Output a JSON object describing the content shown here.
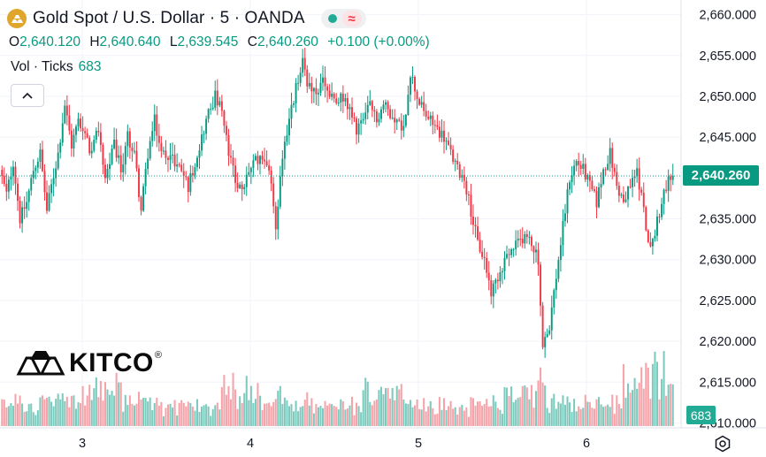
{
  "header": {
    "title": "Gold Spot / U.S. Dollar · 5 · OANDA",
    "symbol_icon": "gold-bars-icon",
    "status_icon": "market-open-dot",
    "indicator_icon": "approx-wave-icon"
  },
  "ohlc": {
    "o_label": "O",
    "o_value": "2,640.120",
    "h_label": "H",
    "h_value": "2,640.640",
    "l_label": "L",
    "l_value": "2,639.545",
    "c_label": "C",
    "c_value": "2,640.260",
    "change": "+0.100 (+0.00%)"
  },
  "volume": {
    "label": "Vol · Ticks",
    "value": "683"
  },
  "logo": {
    "text": "KITCO",
    "registered": "®"
  },
  "colors": {
    "up": "#089981",
    "down": "#f23645",
    "up_vol": "#7cc9bd",
    "down_vol": "#f5a2a9",
    "grid": "#f0f3fa",
    "text": "#131722",
    "accent_gold": "#e0a52b"
  },
  "chart_data": {
    "type": "candlestick",
    "interval": "5",
    "symbol": "XAUUSD",
    "source": "OANDA",
    "x_tick_labels": [
      "3",
      "4",
      "5",
      "6"
    ],
    "y_tick_labels": [
      "2,660.000",
      "2,655.000",
      "2,650.000",
      "2,645.000",
      "2,640.000",
      "2,635.000",
      "2,630.000",
      "2,625.000",
      "2,620.000",
      "2,615.000",
      "2,610.000"
    ],
    "ylim": [
      2609.4,
      2661.8
    ],
    "last_price": 2640.26,
    "last_price_label": "2,640.260",
    "last_volume_label": "683",
    "path": [
      [
        0,
        2641
      ],
      [
        3,
        2638
      ],
      [
        6,
        2642
      ],
      [
        9,
        2635
      ],
      [
        12,
        2637
      ],
      [
        15,
        2641
      ],
      [
        18,
        2643
      ],
      [
        21,
        2636
      ],
      [
        23,
        2639
      ],
      [
        26,
        2643
      ],
      [
        29,
        2649
      ],
      [
        32,
        2644
      ],
      [
        35,
        2647
      ],
      [
        38,
        2645
      ],
      [
        41,
        2643
      ],
      [
        44,
        2646
      ],
      [
        47,
        2640
      ],
      [
        51,
        2644
      ],
      [
        54,
        2641
      ],
      [
        57,
        2645
      ],
      [
        60,
        2643
      ],
      [
        63,
        2636
      ],
      [
        66,
        2643
      ],
      [
        69,
        2647
      ],
      [
        72,
        2643
      ],
      [
        75,
        2643
      ],
      [
        78,
        2642
      ],
      [
        81,
        2641
      ],
      [
        84,
        2639
      ],
      [
        87,
        2642
      ],
      [
        90,
        2645
      ],
      [
        93,
        2648
      ],
      [
        96,
        2650
      ],
      [
        99,
        2648
      ],
      [
        102,
        2643
      ],
      [
        105,
        2640
      ],
      [
        108,
        2638
      ],
      [
        111,
        2641
      ],
      [
        114,
        2642
      ],
      [
        117,
        2643
      ],
      [
        120,
        2641
      ],
      [
        123,
        2634
      ],
      [
        126,
        2643
      ],
      [
        129,
        2647
      ],
      [
        132,
        2651
      ],
      [
        135,
        2654
      ],
      [
        138,
        2651
      ],
      [
        141,
        2650
      ],
      [
        144,
        2652
      ],
      [
        147,
        2650
      ],
      [
        150,
        2649
      ],
      [
        153,
        2650
      ],
      [
        156,
        2648
      ],
      [
        159,
        2646
      ],
      [
        162,
        2647
      ],
      [
        165,
        2649
      ],
      [
        168,
        2647
      ],
      [
        171,
        2649
      ],
      [
        174,
        2648
      ],
      [
        177,
        2647
      ],
      [
        180,
        2646
      ],
      [
        183,
        2653
      ],
      [
        186,
        2650
      ],
      [
        189,
        2648
      ],
      [
        192,
        2647
      ],
      [
        195,
        2646
      ],
      [
        198,
        2645
      ],
      [
        201,
        2643
      ],
      [
        204,
        2641
      ],
      [
        207,
        2640
      ],
      [
        210,
        2636
      ],
      [
        213,
        2632
      ],
      [
        216,
        2630
      ],
      [
        219,
        2626
      ],
      [
        222,
        2628
      ],
      [
        225,
        2630
      ],
      [
        228,
        2631
      ],
      [
        231,
        2632
      ],
      [
        234,
        2633
      ],
      [
        237,
        2632
      ],
      [
        240,
        2630
      ],
      [
        242,
        2619
      ],
      [
        245,
        2622
      ],
      [
        248,
        2628
      ],
      [
        251,
        2634
      ],
      [
        254,
        2640
      ],
      [
        257,
        2642
      ],
      [
        260,
        2641
      ],
      [
        263,
        2639
      ],
      [
        266,
        2637
      ],
      [
        269,
        2641
      ],
      [
        272,
        2643
      ],
      [
        275,
        2639
      ],
      [
        278,
        2637
      ],
      [
        281,
        2639
      ],
      [
        284,
        2641
      ],
      [
        287,
        2636
      ],
      [
        290,
        2631
      ],
      [
        293,
        2635
      ],
      [
        296,
        2638
      ],
      [
        299,
        2640.26
      ]
    ]
  }
}
